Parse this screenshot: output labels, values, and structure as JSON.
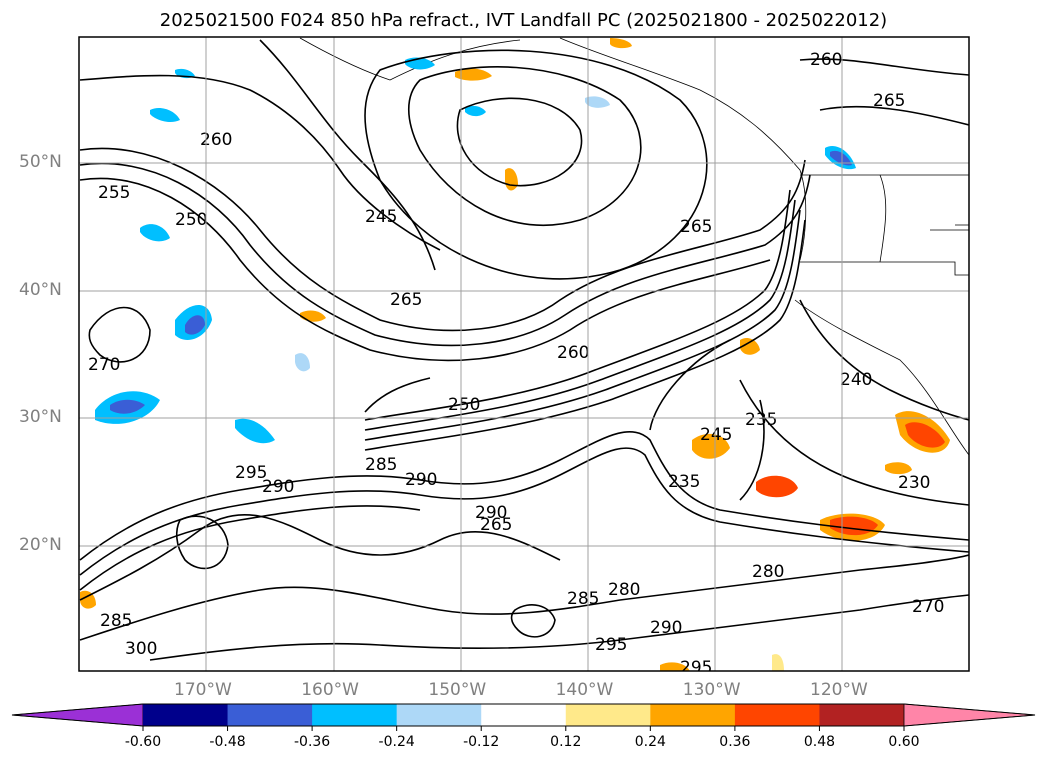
{
  "title": "2025021500 F024 850 hPa refract., IVT Landfall PC (2025021800 - 2025022012)",
  "lat_labels": [
    {
      "text": "50°N",
      "lat": 50
    },
    {
      "text": "40°N",
      "lat": 40
    },
    {
      "text": "30°N",
      "lat": 30
    },
    {
      "text": "20°N",
      "lat": 20
    }
  ],
  "lon_labels": [
    {
      "text": "170°W",
      "lon": -170
    },
    {
      "text": "160°W",
      "lon": -160
    },
    {
      "text": "150°W",
      "lon": -150
    },
    {
      "text": "140°W",
      "lon": -140
    },
    {
      "text": "130°W",
      "lon": -130
    },
    {
      "text": "120°W",
      "lon": -120
    }
  ],
  "contour_labels": [
    {
      "text": "255"
    },
    {
      "text": "250"
    },
    {
      "text": "260"
    },
    {
      "text": "245"
    },
    {
      "text": "265"
    },
    {
      "text": "270"
    },
    {
      "text": "280"
    },
    {
      "text": "285"
    },
    {
      "text": "290"
    },
    {
      "text": "295"
    },
    {
      "text": "300"
    },
    {
      "text": "235"
    },
    {
      "text": "240"
    },
    {
      "text": "230"
    }
  ],
  "colorbar": {
    "ticks": [
      "-0.60",
      "-0.48",
      "-0.36",
      "-0.24",
      "-0.12",
      "0.12",
      "0.24",
      "0.36",
      "0.48",
      "0.60"
    ],
    "colors": [
      "#9b30d6",
      "#00008b",
      "#3a5ed6",
      "#00bfff",
      "#add8f7",
      "#ffffff",
      "#ffe98a",
      "#ffa500",
      "#ff4500",
      "#b22222",
      "#ff85a8"
    ]
  }
}
